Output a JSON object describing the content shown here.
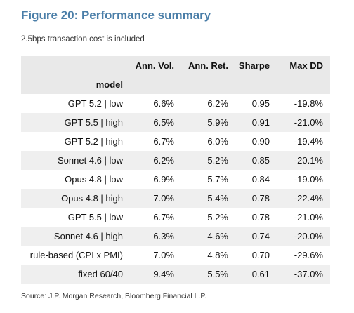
{
  "header": {
    "title": "Figure 20: Performance summary",
    "subtitle": "2.5bps transaction cost is included"
  },
  "table": {
    "columns": [
      "Ann. Vol.",
      "Ann. Ret.",
      "Sharpe",
      "Max DD"
    ],
    "index_name": "model",
    "rows": [
      [
        "GPT 5.2 | low",
        "6.6%",
        "6.2%",
        "0.95",
        "-19.8%"
      ],
      [
        "GPT 5.5 | high",
        "6.5%",
        "5.9%",
        "0.91",
        "-21.0%"
      ],
      [
        "GPT 5.2 | high",
        "6.7%",
        "6.0%",
        "0.90",
        "-19.4%"
      ],
      [
        "Sonnet 4.6 | low",
        "6.2%",
        "5.2%",
        "0.85",
        "-20.1%"
      ],
      [
        "Opus 4.8 | low",
        "6.9%",
        "5.7%",
        "0.84",
        "-19.0%"
      ],
      [
        "Opus 4.8 | high",
        "7.0%",
        "5.4%",
        "0.78",
        "-22.4%"
      ],
      [
        "GPT 5.5 | low",
        "6.7%",
        "5.2%",
        "0.78",
        "-21.0%"
      ],
      [
        "Sonnet 4.6 | high",
        "6.3%",
        "4.6%",
        "0.74",
        "-20.0%"
      ],
      [
        "rule-based (CPI x PMI)",
        "7.0%",
        "4.8%",
        "0.70",
        "-29.6%"
      ],
      [
        "fixed 60/40",
        "9.4%",
        "5.5%",
        "0.61",
        "-37.0%"
      ]
    ]
  },
  "footer": {
    "source": "Source: J.P. Morgan Research, Bloomberg Financial L.P."
  }
}
